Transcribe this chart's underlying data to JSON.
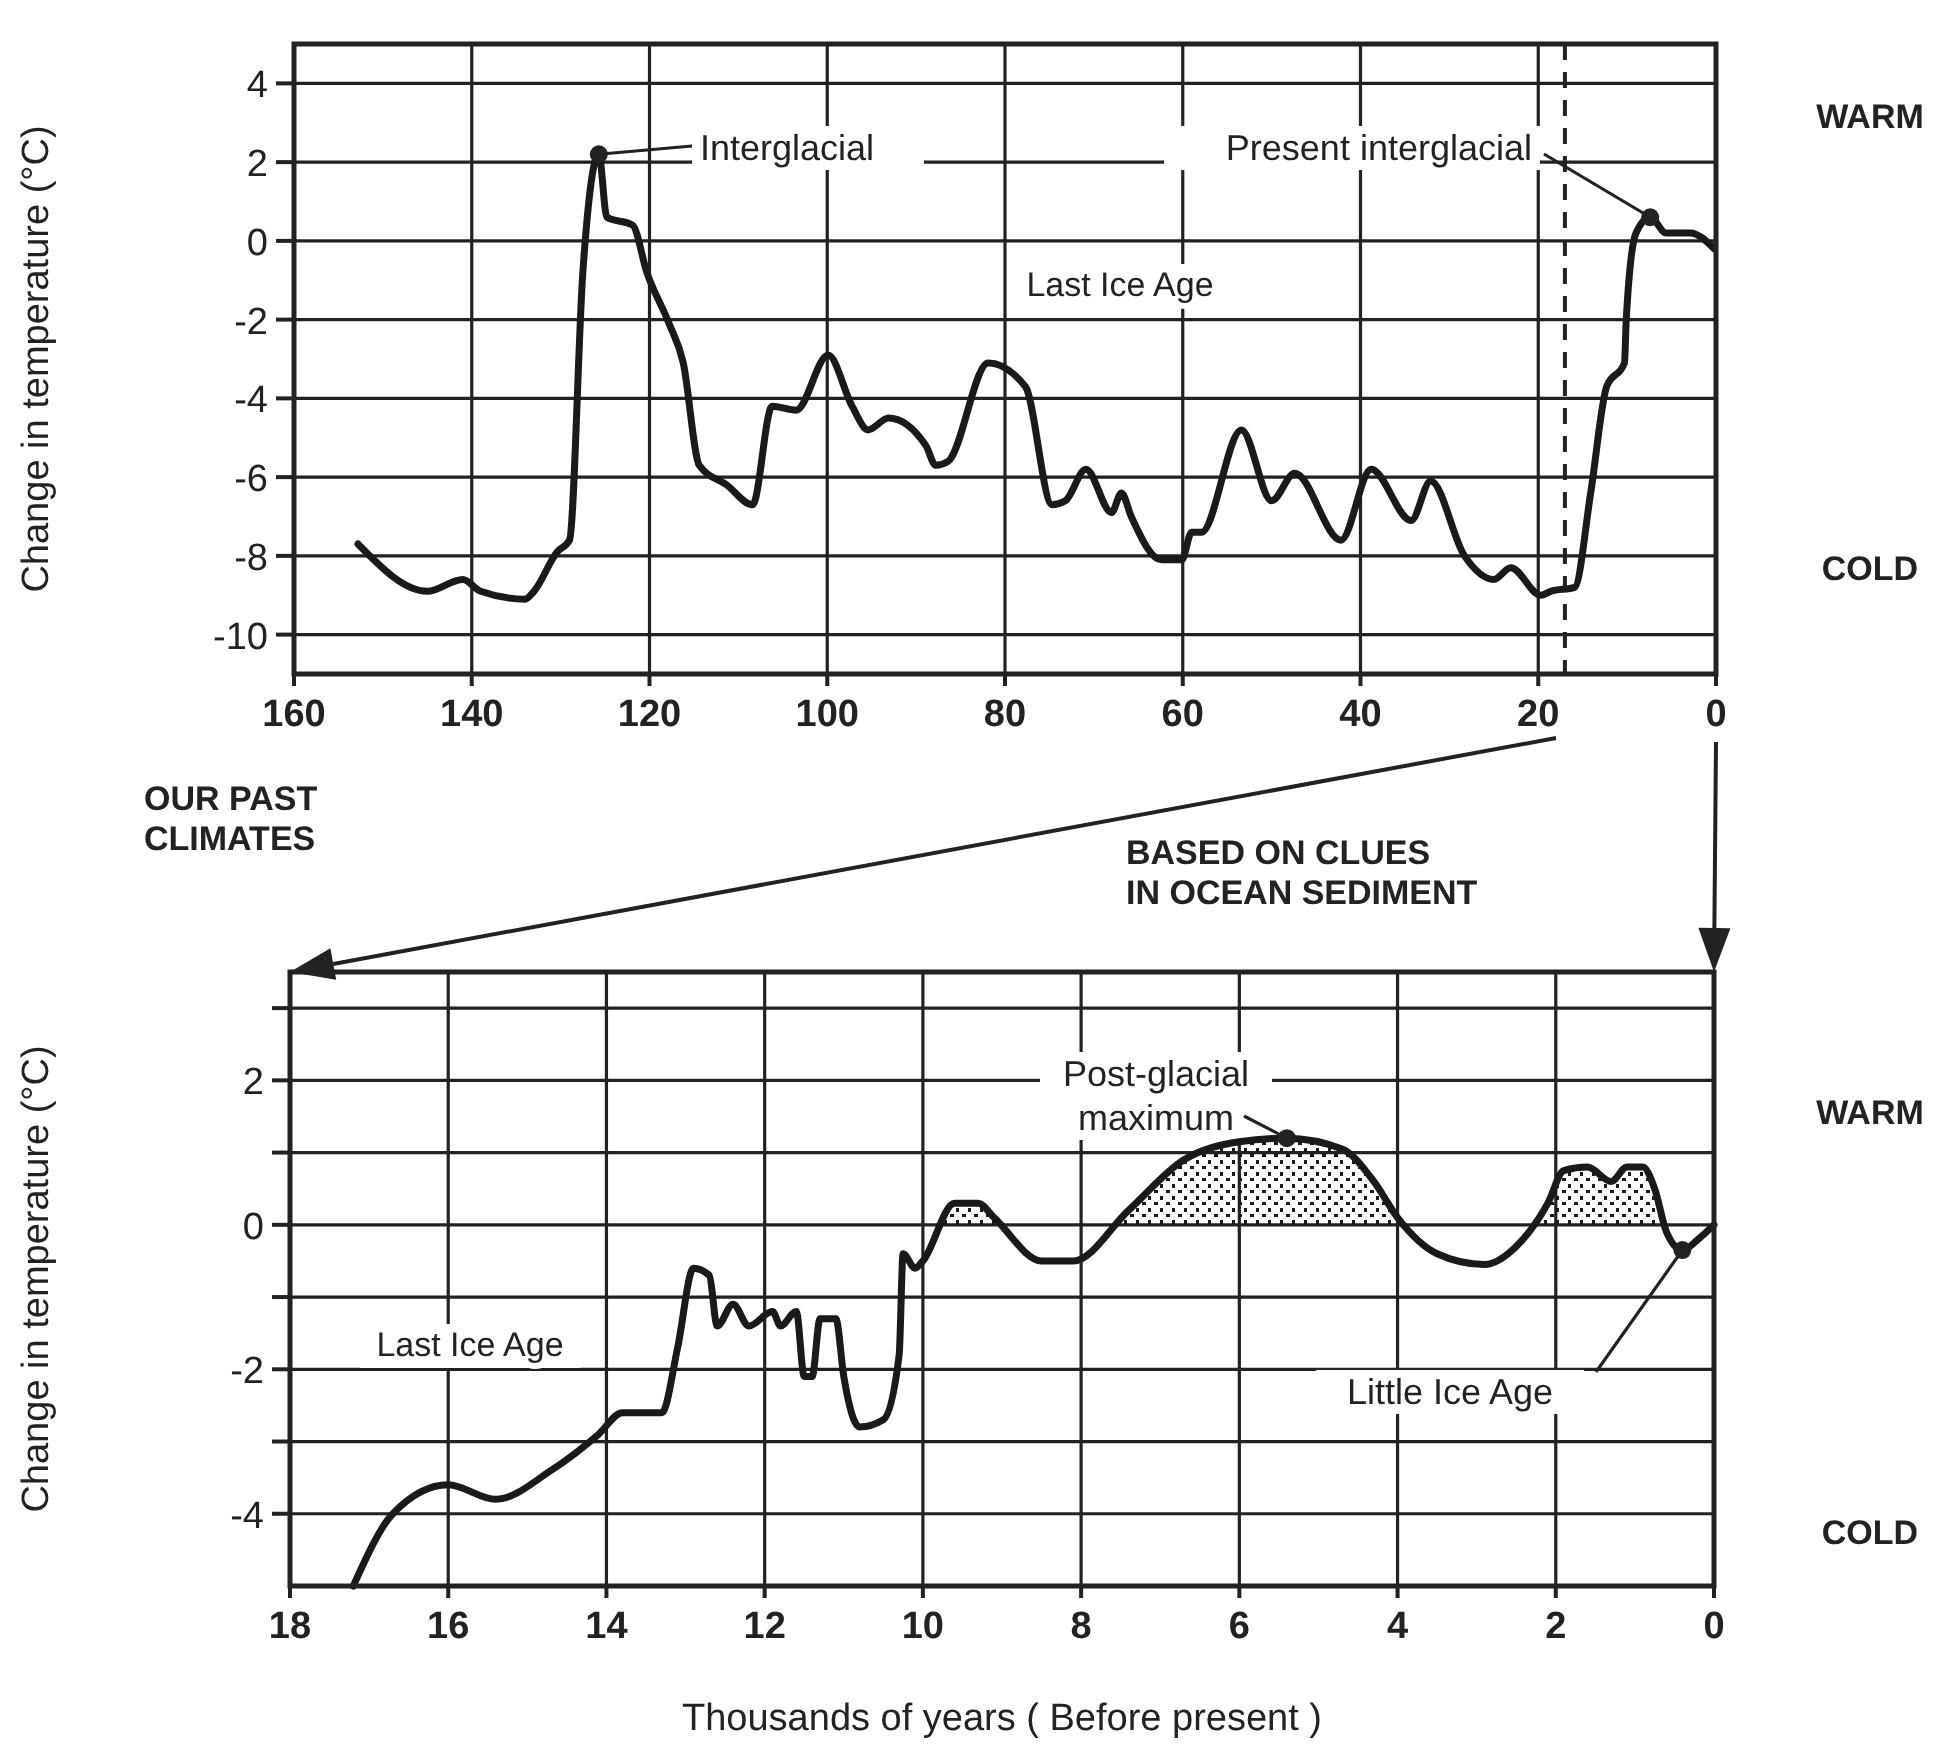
{
  "chart_data": [
    {
      "type": "line",
      "ylabel": "Change in temperature (°C)",
      "xlim": [
        160,
        0
      ],
      "xticks": [
        160,
        140,
        120,
        100,
        80,
        60,
        40,
        20,
        0
      ],
      "ylim": [
        -11,
        5
      ],
      "yticks": [
        4,
        2,
        0,
        -2,
        -4,
        -6,
        -8,
        -10
      ],
      "grid": true,
      "series": [
        {
          "color": "#1a1a1a",
          "x": [
            152.8,
            145,
            141,
            139,
            134,
            133,
            130.4,
            129,
            127.5,
            125.7,
            124.8,
            121.9,
            120.3,
            117.8,
            116.2,
            114.4,
            111.3,
            108.4,
            106.2,
            103.5,
            99.9,
            97.2,
            95.4,
            93.1,
            88.9,
            87.8,
            86.4,
            81.9,
            77.7,
            74.7,
            73.2,
            70.9,
            68,
            66.9,
            65.8,
            62.4,
            60.1,
            59,
            57.9,
            53.4,
            50,
            47.4,
            42.2,
            38.8,
            34.3,
            32.1,
            28.3,
            25,
            23.1,
            19.7,
            18.6,
            15.9,
            14.1,
            12.3,
            10.3,
            10.1,
            9,
            7.4,
            5.6,
            2.9,
            0.2
          ],
          "values": [
            -7.7,
            -8.9,
            -8.6,
            -8.9,
            -9.1,
            -8.9,
            -7.9,
            -7.6,
            -0.8,
            2.2,
            0.6,
            0.4,
            -0.8,
            -2.1,
            -3.1,
            -5.7,
            -6.2,
            -6.7,
            -4.2,
            -4.3,
            -2.9,
            -4.2,
            -4.8,
            -4.5,
            -5.2,
            -5.7,
            -5.6,
            -3.1,
            -3.7,
            -6.7,
            -6.6,
            -5.8,
            -6.9,
            -6.4,
            -7,
            -8.1,
            -8.1,
            -7.4,
            -7.4,
            -4.8,
            -6.6,
            -5.9,
            -7.6,
            -5.8,
            -7.1,
            -6.1,
            -8,
            -8.6,
            -8.3,
            -9,
            -8.9,
            -8.8,
            -6.4,
            -3.7,
            -3.1,
            -2,
            0.2,
            0.6,
            0.2,
            0.2,
            -0.2
          ]
        }
      ],
      "ref_lines": [
        {
          "axis": "x",
          "value": 17,
          "line_style": "dashed"
        }
      ],
      "annotations": [
        {
          "text": "Interglacial",
          "x": 125.7,
          "y": 2.2
        },
        {
          "text": "Present interglacial",
          "x": 7.4,
          "y": 0.6
        },
        "Last Ice Age",
        "WARM",
        "COLD"
      ]
    },
    {
      "type": "area",
      "title": "OUR PAST CLIMATES",
      "subtitle": "BASED ON CLUES IN OCEAN SEDIMENT",
      "xlabel": "Thousands of years ( Before present )",
      "ylabel": "Change in temperature (°C)",
      "xlim": [
        18,
        0
      ],
      "xticks": [
        18,
        16,
        14,
        12,
        10,
        8,
        6,
        4,
        2,
        0
      ],
      "ylim": [
        -5,
        3.5
      ],
      "yticks": [
        {
          "value": 3,
          "label": null
        },
        2,
        {
          "value": 1,
          "label": null
        },
        0,
        {
          "value": -1,
          "label": null
        },
        -2,
        {
          "value": -3,
          "label": null
        },
        -4
      ],
      "grid": true,
      "series": [
        {
          "color": "#1a1a1a",
          "x": [
            17.2,
            16.7,
            16,
            15.4,
            14.7,
            14.1,
            13.8,
            13.3,
            13.1,
            12.9,
            12.7,
            12.6,
            12.4,
            12.2,
            11.9,
            11.8,
            11.6,
            11.5,
            11.4,
            11.3,
            11.1,
            11,
            10.8,
            10.5,
            10.3,
            10.25,
            10.1,
            10,
            9.6,
            9.3,
            9.1,
            8.5,
            8.1,
            7.4,
            6.7,
            6,
            5.4,
            4.7,
            4.3,
            4,
            3.5,
            2.9,
            2.5,
            2.1,
            1.9,
            1.6,
            1.3,
            1.1,
            0.9,
            0.75,
            0.6,
            0.4,
            0.2,
            0
          ],
          "values": [
            -5,
            -4,
            -3.6,
            -3.8,
            -3.4,
            -2.9,
            -2.6,
            -2.6,
            -1.7,
            -0.6,
            -0.7,
            -1.4,
            -1.1,
            -1.4,
            -1.2,
            -1.4,
            -1.2,
            -2.1,
            -2.1,
            -1.3,
            -1.3,
            -2.1,
            -2.8,
            -2.7,
            -1.8,
            -0.4,
            -0.6,
            -0.5,
            0.3,
            0.3,
            0.1,
            -0.5,
            -0.5,
            0.2,
            0.9,
            1.15,
            1.2,
            1.05,
            0.6,
            0.1,
            -0.4,
            -0.55,
            -0.3,
            0.3,
            0.75,
            0.8,
            0.6,
            0.8,
            0.8,
            0.5,
            -0.1,
            -0.35,
            -0.2,
            0
          ]
        }
      ],
      "annotations": [
        {
          "text": "Post-glacial maximum",
          "x": 5.4,
          "y": 1.2
        },
        {
          "text": "Little Ice Age",
          "x": 0.4,
          "y": -0.35
        },
        "Last Ice Age",
        "WARM",
        "COLD"
      ]
    }
  ]
}
